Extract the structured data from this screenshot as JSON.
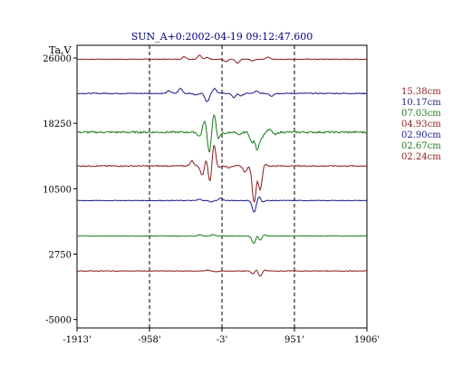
{
  "chart_data": {
    "type": "line",
    "title": "SUN_A+0:2002-04-19 09:12:47.600",
    "ylabel": "Ta,V",
    "xlabel": "",
    "xlim": [
      -1913,
      1906
    ],
    "ylim": [
      -6000,
      27500
    ],
    "x_ticks": [
      {
        "value": -1913,
        "label": "-1913'"
      },
      {
        "value": -958,
        "label": "-958'"
      },
      {
        "value": -3,
        "label": "-3'"
      },
      {
        "value": 951,
        "label": "951'"
      },
      {
        "value": 1906,
        "label": "1906'"
      }
    ],
    "y_ticks": [
      {
        "value": 26000,
        "label": "26000"
      },
      {
        "value": 18250,
        "label": "18250"
      },
      {
        "value": 10500,
        "label": "10500"
      },
      {
        "value": 2750,
        "label": "2750"
      },
      {
        "value": -5000,
        "label": "-5000"
      }
    ],
    "dashed_x": [
      -958,
      -3,
      951
    ],
    "series": [
      {
        "name": "15.38cm",
        "color": "#8b1a1a",
        "baseline": 25850,
        "features": [
          [
            -500,
            300
          ],
          [
            -300,
            500
          ],
          [
            -200,
            200
          ],
          [
            50,
            -300
          ],
          [
            200,
            -500
          ],
          [
            400,
            -200
          ],
          [
            600,
            250
          ]
        ],
        "noise": 40
      },
      {
        "name": "10.17cm",
        "color": "#1a1a8b",
        "baseline": 21800,
        "features": [
          [
            -700,
            300
          ],
          [
            -550,
            600
          ],
          [
            -350,
            -200
          ],
          [
            -200,
            -1000
          ],
          [
            -100,
            600
          ],
          [
            150,
            -500
          ],
          [
            250,
            -300
          ],
          [
            450,
            250
          ],
          [
            650,
            -300
          ]
        ],
        "noise": 60
      },
      {
        "name": "07.03cm",
        "color": "#1a7a1a",
        "baseline": 17200,
        "features": [
          [
            -300,
            -500
          ],
          [
            -230,
            1400
          ],
          [
            -170,
            -2500
          ],
          [
            -110,
            2200
          ],
          [
            -50,
            -800
          ],
          [
            50,
            -150
          ],
          [
            220,
            -400
          ],
          [
            390,
            -1200
          ],
          [
            460,
            -2000
          ],
          [
            520,
            -600
          ],
          [
            620,
            300
          ],
          [
            700,
            -300
          ]
        ],
        "noise": 110
      },
      {
        "name": "04.93cm",
        "color": "#8b1a1a",
        "baseline": 13200,
        "features": [
          [
            -400,
            600
          ],
          [
            -260,
            -1200
          ],
          [
            -210,
            1000
          ],
          [
            -160,
            -2200
          ],
          [
            -110,
            2800
          ],
          [
            -60,
            -300
          ],
          [
            80,
            -200
          ],
          [
            300,
            -700
          ],
          [
            420,
            -4300
          ],
          [
            500,
            -2800
          ],
          [
            560,
            250
          ]
        ],
        "noise": 70
      },
      {
        "name": "02.90cm",
        "color": "#1a1a8b",
        "baseline": 9100,
        "features": [
          [
            -300,
            150
          ],
          [
            -150,
            -150
          ],
          [
            -20,
            300
          ],
          [
            420,
            -1400
          ],
          [
            490,
            600
          ],
          [
            520,
            -300
          ]
        ],
        "noise": 40
      },
      {
        "name": "02.67cm",
        "color": "#1a7a1a",
        "baseline": 4900,
        "features": [
          [
            -300,
            150
          ],
          [
            -120,
            150
          ],
          [
            420,
            -1000
          ],
          [
            460,
            400
          ],
          [
            500,
            -700
          ],
          [
            540,
            250
          ]
        ],
        "noise": 40
      },
      {
        "name": "02.24cm",
        "color": "#8b1a1a",
        "baseline": 750,
        "features": [
          [
            -200,
            100
          ],
          [
            -80,
            -100
          ],
          [
            410,
            -400
          ],
          [
            450,
            300
          ],
          [
            500,
            -700
          ],
          [
            550,
            150
          ]
        ],
        "noise": 35
      }
    ],
    "grid": false,
    "legend_position": "right"
  }
}
